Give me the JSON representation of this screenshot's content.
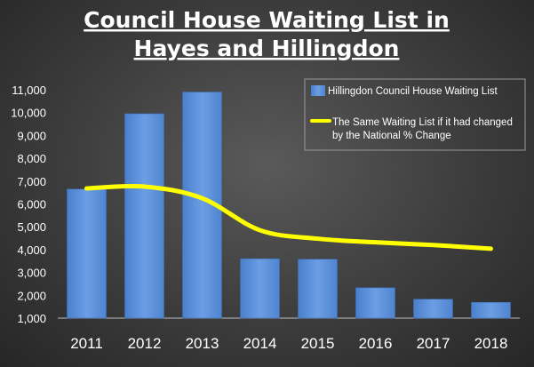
{
  "chart_data": {
    "type": "bar",
    "title": [
      "Council House Waiting List in",
      "Hayes and Hillingdon"
    ],
    "categories": [
      "2011",
      "2012",
      "2013",
      "2014",
      "2015",
      "2016",
      "2017",
      "2018"
    ],
    "series": [
      {
        "name": "Hillingdon Council House Waiting List",
        "type": "bar",
        "color": "#5b8fd8",
        "values": [
          6650,
          9950,
          10900,
          3600,
          3580,
          2330,
          1830,
          1690
        ]
      },
      {
        "name": "The Same Waiting List if it had changed by the National % Change",
        "type": "line",
        "color": "#ffff00",
        "values": [
          6680,
          6760,
          6250,
          4850,
          4480,
          4320,
          4200,
          4040
        ]
      }
    ],
    "yticks": [
      "1,000",
      "2,000",
      "3,000",
      "4,000",
      "5,000",
      "6,000",
      "7,000",
      "8,000",
      "9,000",
      "10,000",
      "11,000"
    ],
    "ylim": [
      1000,
      11000
    ],
    "grid": false,
    "legend_position": "top-right"
  }
}
